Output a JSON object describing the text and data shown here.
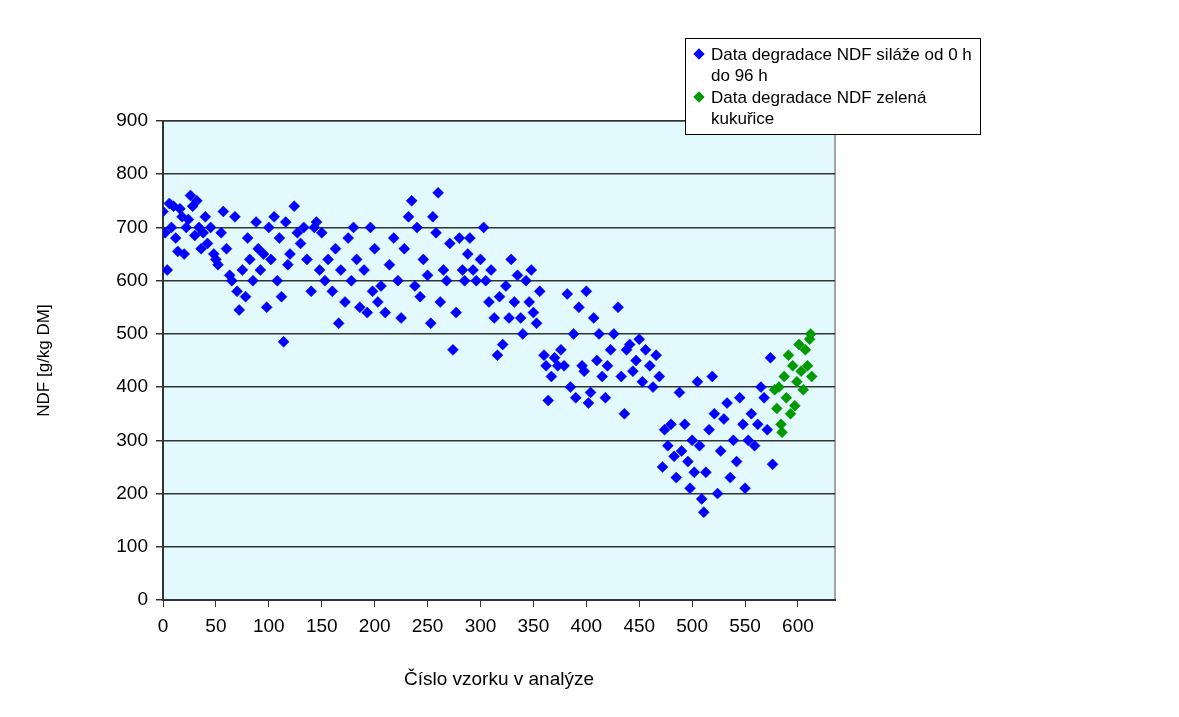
{
  "chart_data": {
    "type": "scatter",
    "xlabel": "Číslo vzorku v analýze",
    "ylabel": "NDF [g/kg DM]",
    "xlim": [
      0,
      635
    ],
    "xticks": [
      0,
      50,
      100,
      150,
      200,
      250,
      300,
      350,
      400,
      450,
      500,
      550,
      600
    ],
    "ylim": [
      0,
      900
    ],
    "yticks": [
      0,
      100,
      200,
      300,
      400,
      500,
      600,
      700,
      800,
      900
    ],
    "grid": "y",
    "legend": "top right",
    "marker": "diamond",
    "series": [
      {
        "name": "Data degradace NDF siláže od 0 h do 96 h",
        "color": "#0000ff",
        "x": [
          0,
          2,
          4,
          6,
          8,
          10,
          12,
          14,
          16,
          18,
          20,
          22,
          24,
          26,
          28,
          30,
          32,
          34,
          36,
          38,
          40,
          42,
          45,
          48,
          50,
          52,
          55,
          57,
          60,
          63,
          65,
          68,
          70,
          72,
          75,
          78,
          80,
          82,
          85,
          88,
          90,
          92,
          95,
          98,
          100,
          102,
          105,
          108,
          110,
          112,
          114,
          116,
          118,
          120,
          124,
          127,
          130,
          133,
          136,
          140,
          143,
          145,
          148,
          150,
          153,
          156,
          160,
          163,
          166,
          168,
          172,
          175,
          178,
          180,
          183,
          186,
          190,
          193,
          196,
          198,
          200,
          203,
          206,
          210,
          214,
          218,
          222,
          225,
          228,
          232,
          235,
          238,
          240,
          243,
          246,
          250,
          253,
          255,
          258,
          260,
          262,
          265,
          268,
          271,
          274,
          277,
          280,
          283,
          285,
          288,
          290,
          293,
          296,
          300,
          303,
          305,
          308,
          310,
          313,
          316,
          318,
          321,
          324,
          327,
          329,
          332,
          335,
          338,
          340,
          343,
          346,
          348,
          350,
          353,
          356,
          360,
          362,
          364,
          367,
          370,
          373,
          376,
          379,
          382,
          385,
          388,
          390,
          393,
          396,
          398,
          400,
          402,
          404,
          407,
          410,
          412,
          415,
          418,
          420,
          423,
          426,
          430,
          433,
          436,
          438,
          441,
          444,
          447,
          450,
          453,
          456,
          460,
          463,
          466,
          469,
          472,
          474,
          477,
          480,
          483,
          485,
          488,
          490,
          493,
          496,
          498,
          500,
          502,
          505,
          507,
          509,
          511,
          513,
          516,
          519,
          521,
          524,
          527,
          530,
          533,
          536,
          539,
          542,
          545,
          548,
          550,
          553,
          556,
          559,
          562,
          565,
          568,
          571,
          574,
          576
        ],
        "values": [
          730,
          690,
          620,
          745,
          700,
          740,
          680,
          655,
          735,
          720,
          650,
          700,
          715,
          760,
          740,
          685,
          750,
          700,
          660,
          690,
          720,
          670,
          700,
          650,
          640,
          630,
          690,
          730,
          660,
          610,
          600,
          720,
          580,
          545,
          620,
          570,
          680,
          640,
          600,
          710,
          660,
          620,
          650,
          550,
          700,
          640,
          720,
          600,
          680,
          570,
          485,
          710,
          630,
          650,
          740,
          690,
          670,
          700,
          640,
          580,
          700,
          710,
          620,
          690,
          600,
          640,
          580,
          660,
          520,
          620,
          560,
          680,
          600,
          700,
          640,
          550,
          620,
          540,
          700,
          580,
          660,
          560,
          590,
          540,
          630,
          680,
          600,
          530,
          660,
          720,
          750,
          590,
          700,
          570,
          640,
          610,
          520,
          720,
          690,
          765,
          560,
          620,
          600,
          670,
          470,
          540,
          680,
          620,
          600,
          650,
          680,
          620,
          600,
          640,
          700,
          600,
          560,
          620,
          530,
          460,
          570,
          480,
          590,
          530,
          640,
          560,
          610,
          530,
          500,
          600,
          560,
          620,
          540,
          520,
          580,
          460,
          440,
          375,
          420,
          455,
          440,
          470,
          440,
          575,
          400,
          500,
          380,
          550,
          440,
          430,
          580,
          370,
          390,
          530,
          450,
          500,
          420,
          380,
          440,
          470,
          500,
          550,
          420,
          350,
          470,
          480,
          430,
          450,
          490,
          410,
          470,
          440,
          400,
          460,
          420,
          250,
          320,
          290,
          330,
          270,
          230,
          390,
          280,
          330,
          260,
          210,
          300,
          240,
          410,
          290,
          190,
          165,
          240,
          320,
          420,
          350,
          200,
          280,
          340,
          370,
          230,
          300,
          260,
          380,
          330,
          210,
          300,
          350,
          290,
          330,
          400,
          380,
          320,
          455,
          255
        ]
      },
      {
        "name": "Data degradace NDF zelená kukuřice",
        "color": "#009900",
        "x": [
          578,
          580,
          582,
          584,
          585,
          587,
          589,
          591,
          593,
          595,
          597,
          599,
          601,
          603,
          605,
          607,
          609,
          611,
          612,
          613
        ],
        "values": [
          395,
          360,
          400,
          330,
          315,
          420,
          380,
          460,
          350,
          440,
          365,
          410,
          480,
          430,
          395,
          470,
          440,
          490,
          500,
          420
        ]
      }
    ]
  }
}
